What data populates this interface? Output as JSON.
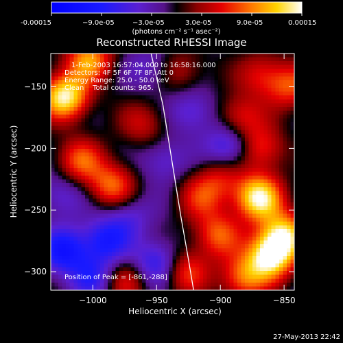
{
  "chart_data": {
    "type": "heatmap",
    "title": "Reconstructed RHESSI Image",
    "xlabel": "Heliocentric X (arcsec)",
    "ylabel": "Heliocentric Y (arcsec)",
    "xlim": [
      -1033,
      -842
    ],
    "ylim": [
      -315,
      -123
    ],
    "x_ticks": [
      -1000,
      -950,
      -900,
      -850
    ],
    "y_ticks": [
      -150,
      -200,
      -250,
      -300
    ],
    "x_tick_labels": [
      "−1000",
      "−950",
      "−900",
      "−850"
    ],
    "y_tick_labels": [
      "−150",
      "−200",
      "−250",
      "−300"
    ],
    "colorbar": {
      "min": -0.00015,
      "max": 0.00015,
      "tick_labels": [
        "-0.00015",
        "−9.0e-05",
        "−3.0e-05",
        "3.0e-05",
        "9.0e-05",
        "0.00015"
      ],
      "unit_label": "(photons cm⁻² s⁻¹ asec⁻²)"
    },
    "annotations": [
      "1-Feb-2003 16:57:04.000 to 16:58:16.000",
      "Detectors: 4F 5F 6F 7F 8F, Att 0",
      "Energy Range: 25.0 - 50.0 keV",
      "Clean    Total counts: 965."
    ],
    "peak_label": "Position of Peak = [-861,-288]",
    "peak": [
      -861,
      -288
    ],
    "limb_curve": [
      [
        -955,
        -120
      ],
      [
        -945,
        -165
      ],
      [
        -938,
        -210
      ],
      [
        -931,
        -255
      ],
      [
        -925,
        -290
      ],
      [
        -921,
        -315
      ]
    ],
    "intensity_peaks": [
      {
        "x": -1022,
        "y": -158,
        "v": 1.0
      },
      {
        "x": -1003,
        "y": -128,
        "v": 0.7
      },
      {
        "x": -1010,
        "y": -210,
        "v": 0.55
      },
      {
        "x": -985,
        "y": -230,
        "v": 0.6
      },
      {
        "x": -990,
        "y": -275,
        "v": -0.55
      },
      {
        "x": -1023,
        "y": -283,
        "v": -0.65
      },
      {
        "x": -950,
        "y": -293,
        "v": -0.5
      },
      {
        "x": -972,
        "y": -255,
        "v": -0.3
      },
      {
        "x": -945,
        "y": -210,
        "v": -0.3
      },
      {
        "x": -922,
        "y": -170,
        "v": -0.35
      },
      {
        "x": -885,
        "y": -175,
        "v": 0.45
      },
      {
        "x": -893,
        "y": -198,
        "v": -0.5
      },
      {
        "x": -868,
        "y": -200,
        "v": 0.5
      },
      {
        "x": -870,
        "y": -240,
        "v": 1.0
      },
      {
        "x": -861,
        "y": -288,
        "v": 1.0
      },
      {
        "x": -850,
        "y": -270,
        "v": 0.85
      },
      {
        "x": -902,
        "y": -270,
        "v": 0.55
      },
      {
        "x": -915,
        "y": -240,
        "v": 0.4
      },
      {
        "x": -927,
        "y": -300,
        "v": 0.5
      },
      {
        "x": -868,
        "y": -140,
        "v": 0.4
      },
      {
        "x": -845,
        "y": -150,
        "v": 0.5
      },
      {
        "x": -955,
        "y": -135,
        "v": -0.25
      },
      {
        "x": -960,
        "y": -180,
        "v": 0.35
      },
      {
        "x": -930,
        "y": -137,
        "v": 0.3
      },
      {
        "x": -1025,
        "y": -238,
        "v": -0.3
      },
      {
        "x": -1000,
        "y": -305,
        "v": -0.45
      },
      {
        "x": -975,
        "y": -308,
        "v": 0.4
      },
      {
        "x": -882,
        "y": -305,
        "v": 0.6
      },
      {
        "x": -900,
        "y": -225,
        "v": 0.35
      }
    ]
  },
  "footer": {
    "date": "27-May-2013 22:42"
  }
}
